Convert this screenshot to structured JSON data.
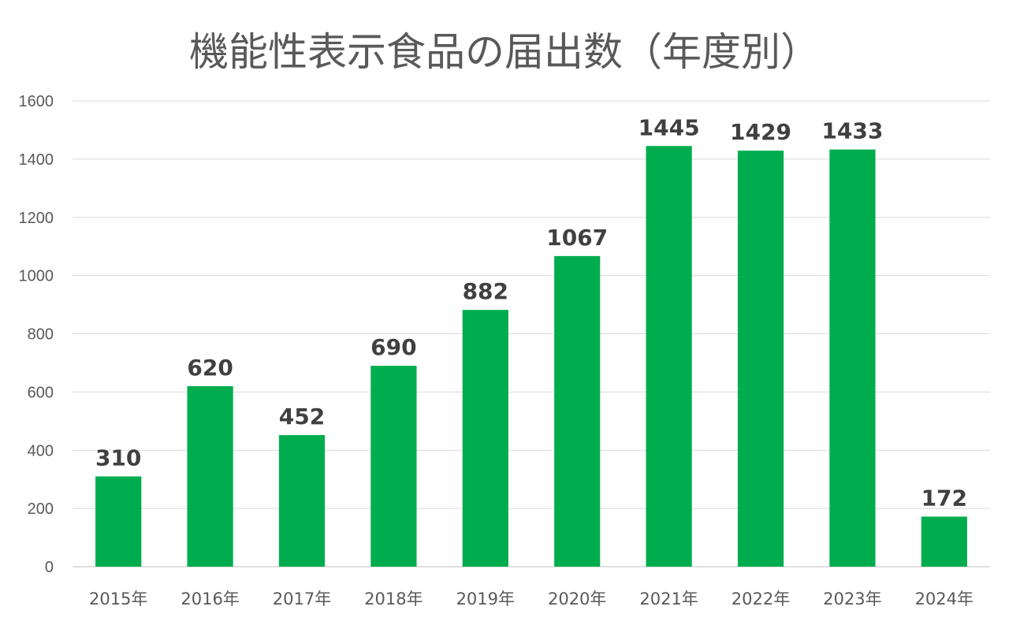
{
  "chart_data": {
    "type": "bar",
    "title": "機能性表示食品の届出数（年度別）",
    "categories": [
      "2015年",
      "2016年",
      "2017年",
      "2018年",
      "2019年",
      "2020年",
      "2021年",
      "2022年",
      "2023年",
      "2024年"
    ],
    "values": [
      310,
      620,
      452,
      690,
      882,
      1067,
      1445,
      1429,
      1433,
      172
    ],
    "xlabel": "",
    "ylabel": "",
    "ylim": [
      0,
      1600
    ],
    "yticks": [
      "0",
      "200",
      "400",
      "600",
      "800",
      "1000",
      "1200",
      "1400",
      "1600"
    ],
    "grid": true,
    "legend": "none",
    "bar_color": "#00AD4E",
    "data_labels": true
  }
}
